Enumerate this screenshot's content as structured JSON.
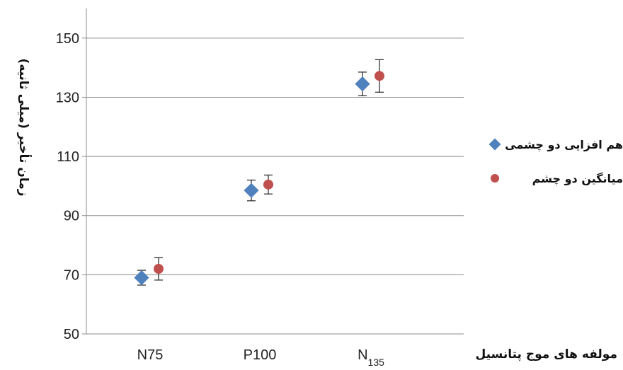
{
  "chart_data": {
    "type": "scatter",
    "categories": [
      "N75",
      "P100",
      "N135"
    ],
    "x_tick_labels": [
      {
        "main": "N75",
        "sub": ""
      },
      {
        "main": "P100",
        "sub": ""
      },
      {
        "main": "N",
        "sub": "135"
      }
    ],
    "xlabel": "مولفه های موج پتانسیل",
    "ylabel": "زمان تأخیر (میلی ثانیه)",
    "ylim": [
      50,
      160
    ],
    "yticks": [
      50,
      70,
      90,
      110,
      130,
      150
    ],
    "grid": true,
    "legend_position": "right",
    "series": [
      {
        "name": "هم افزایی دو چشمی",
        "marker": "diamond",
        "color": "#4F81BD",
        "values": [
          69,
          98.5,
          134.5
        ],
        "error": [
          2.5,
          3.5,
          4
        ]
      },
      {
        "name": "میانگین دو چشم",
        "marker": "circle",
        "color": "#C0504D",
        "values": [
          72,
          100.5,
          137.2
        ],
        "error": [
          3.8,
          3.2,
          5.5
        ]
      }
    ]
  }
}
